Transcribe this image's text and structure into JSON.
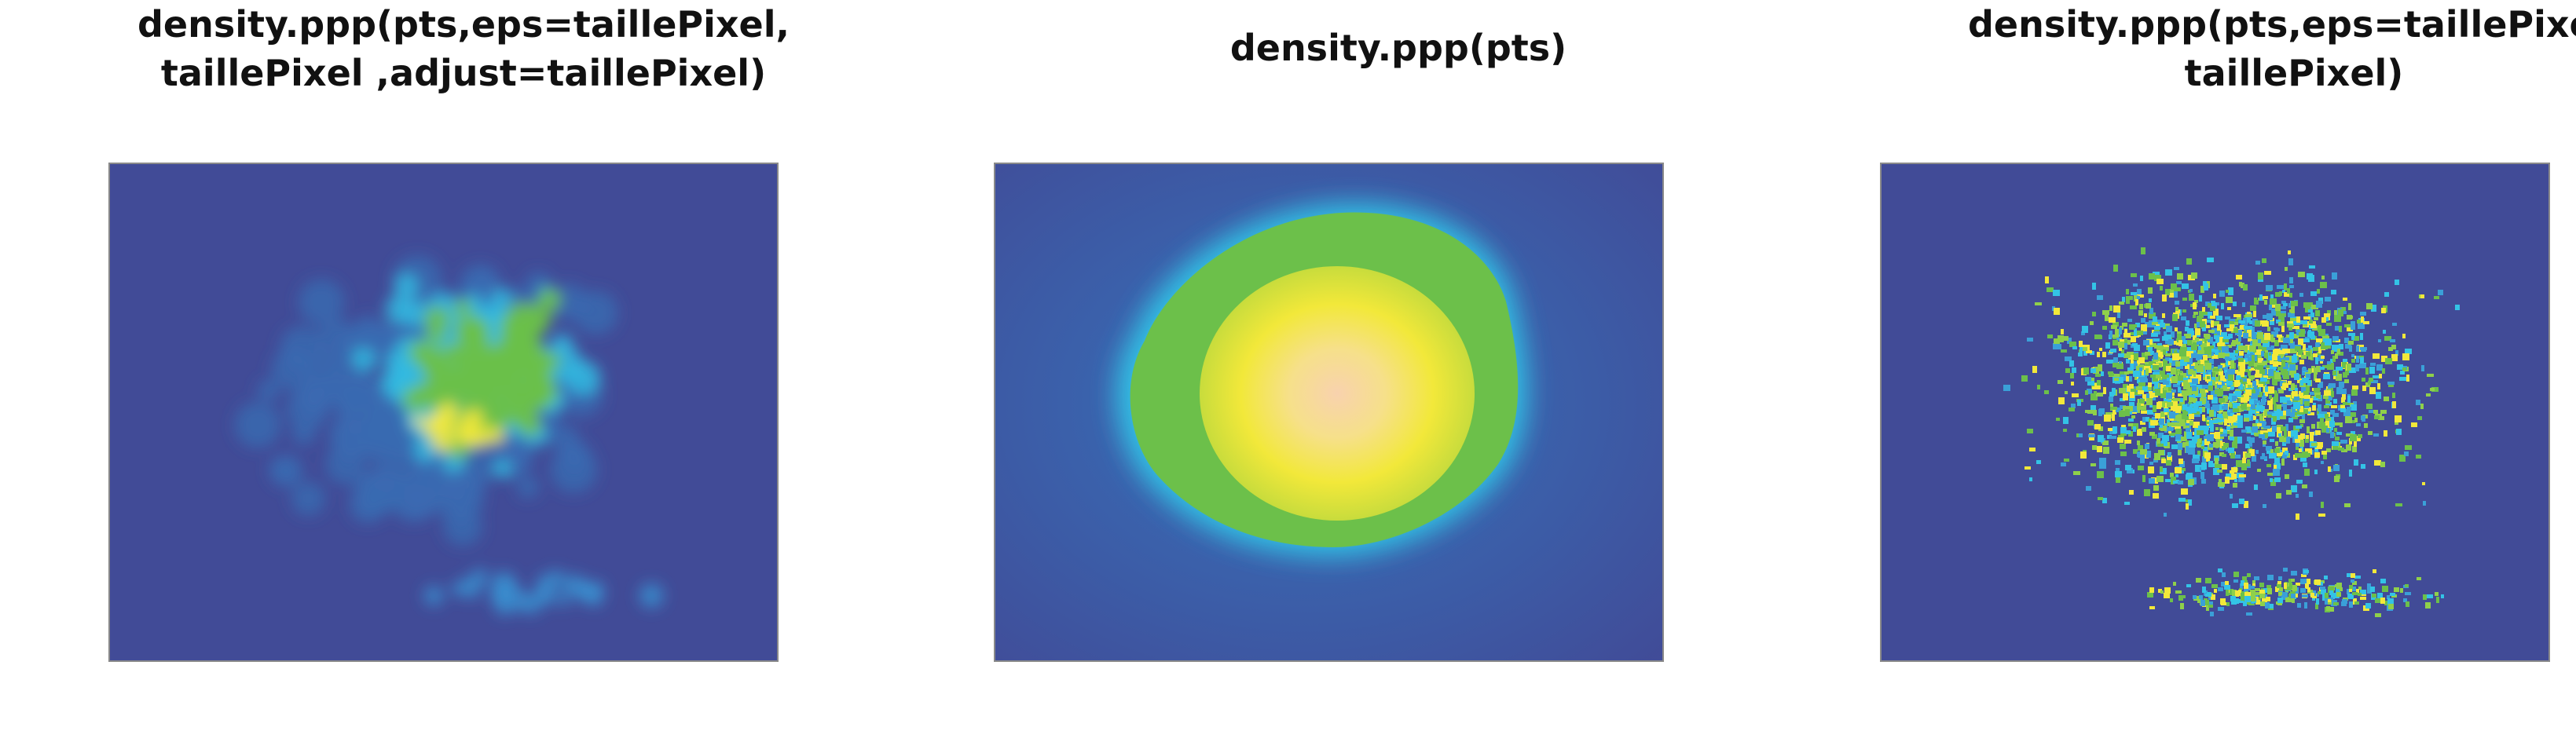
{
  "panels": [
    {
      "title_lines": [
        "density.ppp(pts,eps=taillePixel,",
        "taillePixel ,adjust=taillePixel)"
      ],
      "image": "density map with adjusted bandwidth"
    },
    {
      "title_lines": [
        "density.ppp(pts)"
      ],
      "image": "smooth density map"
    },
    {
      "title_lines": [
        "density.ppp(pts,eps=taillePixel,",
        "taillePixel)"
      ],
      "image": "pixel-level density map"
    }
  ],
  "palette": {
    "background": "#414b97",
    "low": "#3a5aa8",
    "cyan": "#33c3e6",
    "green": "#6cc04a",
    "yellow": "#f2e83a",
    "peak": "#f8d2ae"
  }
}
